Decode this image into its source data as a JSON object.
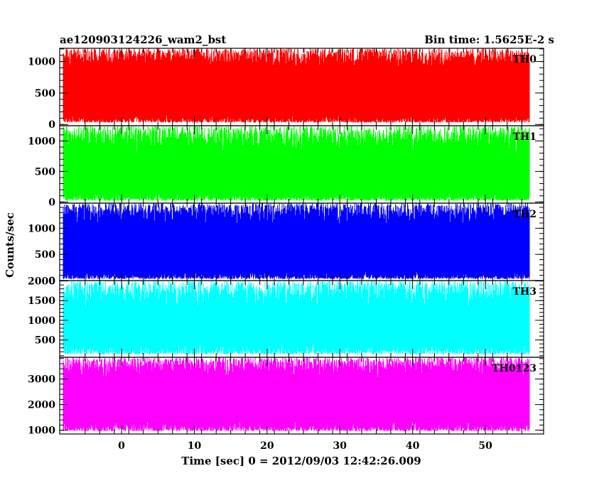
{
  "header": {
    "left_title": "ae120903124226_wam2_bst",
    "right_title": "Bin time: 1.5625E-2 s"
  },
  "chart_data": {
    "type": "line",
    "xlabel": "Time [sec] 0 = 2012/09/03 12:42:26.009",
    "ylabel": "Counts/sec",
    "xlim": [
      -8.5,
      58
    ],
    "x_range": [
      -8,
      56
    ],
    "bin_time": 0.015625,
    "x_ticks": [
      0,
      10,
      20,
      30,
      40,
      50
    ],
    "x_tick_labels": [
      "0",
      "10",
      "20",
      "30",
      "40",
      "50"
    ],
    "grid": false,
    "series": [
      {
        "name": "TH0",
        "color": "#ff0000",
        "ylim": [
          -20,
          1210
        ],
        "y_ticks": [
          0,
          500,
          1000
        ],
        "y_tick_labels": [
          "0",
          "500",
          "1000"
        ],
        "envelope_low": [
          30,
          110
        ],
        "envelope_high": [
          870,
          1210
        ]
      },
      {
        "name": "TH1",
        "color": "#00ff00",
        "ylim": [
          -20,
          1250
        ],
        "y_ticks": [
          0,
          500,
          1000
        ],
        "y_tick_labels": [
          "0",
          "500",
          "1000"
        ],
        "envelope_low": [
          20,
          110
        ],
        "envelope_high": [
          780,
          1250
        ]
      },
      {
        "name": "TH2",
        "color": "#0000ff",
        "ylim": [
          0,
          1480
        ],
        "y_ticks": [
          0,
          500,
          1000
        ],
        "y_tick_labels": [
          "0",
          "500",
          "1000"
        ],
        "envelope_low": [
          30,
          130
        ],
        "envelope_high": [
          1030,
          1480
        ]
      },
      {
        "name": "TH3",
        "color": "#00ffff",
        "ylim": [
          60,
          2010
        ],
        "y_ticks": [
          500,
          1000,
          1500,
          2000
        ],
        "y_tick_labels": [
          "500",
          "1000",
          "1500",
          "2000"
        ],
        "envelope_low": [
          130,
          360
        ],
        "envelope_high": [
          1260,
          2010
        ]
      },
      {
        "name": "TH0123",
        "color": "#ff00ff",
        "ylim": [
          850,
          3850
        ],
        "y_ticks": [
          1000,
          2000,
          3000
        ],
        "y_tick_labels": [
          "1000",
          "2000",
          "3000"
        ],
        "envelope_low": [
          960,
          1250
        ],
        "envelope_high": [
          3000,
          3850
        ]
      }
    ]
  }
}
